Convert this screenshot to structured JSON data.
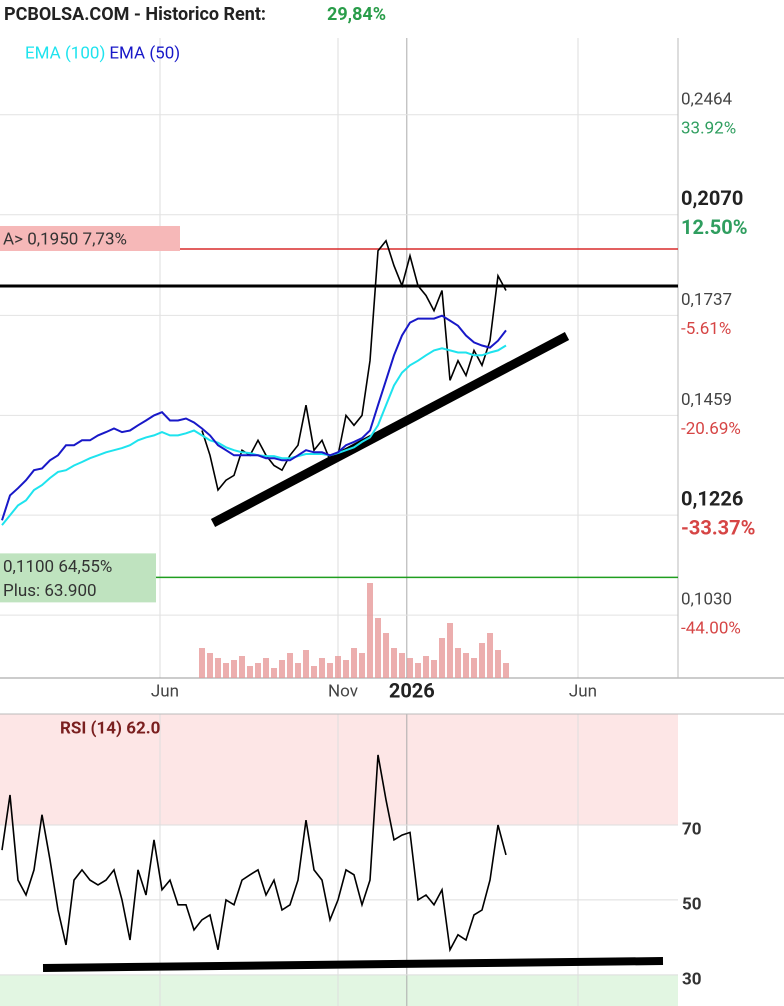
{
  "chart_data": [
    {
      "type": "line",
      "title": "PCBOLSA.COM - Historico  Rent:",
      "title_value": "29,84%",
      "log_scale": true,
      "ylim": [
        0.0923,
        0.2817
      ],
      "yticks": [
        {
          "value": 0.2464,
          "label": "0,2464"
        },
        {
          "value": 0.207,
          "label": "0,2070"
        },
        {
          "value": 0.1737,
          "label": "0,1737"
        },
        {
          "value": 0.1459,
          "label": "0,1459"
        },
        {
          "value": 0.1226,
          "label": "0,1226"
        },
        {
          "value": 0.103,
          "label": "0,1030"
        }
      ],
      "change_labels": [
        "33.92%",
        "12.50%",
        "-5.61%",
        "-20.69%",
        "-33.37%",
        "-44.00%"
      ],
      "xlim": [
        -0.25,
        84.5
      ],
      "xticks": [
        {
          "value": 19.75,
          "label": "Jun"
        },
        {
          "value": 42,
          "label": "Nov"
        },
        {
          "value": 50.6,
          "label": "2026"
        },
        {
          "value": 72,
          "label": "Jun"
        }
      ],
      "levels": [
        {
          "value": 0.195,
          "label": "A> 0,1950  7,73%",
          "color": "#d92b2b",
          "box": "#f6b8b8"
        },
        {
          "value": 0.11,
          "label": "0,1100  64,55%",
          "note": "Plus: 63.900",
          "color": "#1f9e1f",
          "box": "#bfe3bf"
        }
      ],
      "series": [
        {
          "color": "#000000",
          "values": [
            null,
            null,
            null,
            null,
            null,
            null,
            null,
            null,
            null,
            null,
            null,
            null,
            null,
            null,
            null,
            null,
            null,
            null,
            null,
            null,
            null,
            null,
            null,
            null,
            null,
            0.1421,
            0.1361,
            0.1281,
            0.1303,
            0.1314,
            0.1373,
            0.1361,
            0.1397,
            0.1361,
            0.1337,
            0.1326,
            0.1361,
            0.1385,
            0.1485,
            0.1373,
            0.1397,
            0.1349,
            0.1361,
            0.1459,
            0.1434,
            0.1459,
            0.1605,
            0.1944,
            0.1978,
            0.1894,
            0.1829,
            0.1927,
            0.1829,
            0.1798,
            0.1751,
            0.1814,
            0.1551,
            0.1605,
            0.1564,
            0.1634,
            0.1592,
            0.1662,
            0.1861,
            0.1814
          ]
        },
        {
          "name": "EMA (100)",
          "color": "#1ee3ee",
          "values": [
            0.1205,
            0.1226,
            0.1247,
            0.1258,
            0.1281,
            0.1292,
            0.1308,
            0.1322,
            0.1326,
            0.1337,
            0.1345,
            0.1354,
            0.1361,
            0.1368,
            0.1373,
            0.1378,
            0.1385,
            0.1397,
            0.1404,
            0.1409,
            0.1417,
            0.1409,
            0.1409,
            0.1414,
            0.1421,
            0.1409,
            0.1397,
            0.1391,
            0.138,
            0.1373,
            0.1368,
            0.1366,
            0.1361,
            0.1359,
            0.1359,
            0.1354,
            0.1354,
            0.1359,
            0.1364,
            0.1364,
            0.1364,
            0.1361,
            0.1366,
            0.1373,
            0.138,
            0.1393,
            0.1404,
            0.1434,
            0.1485,
            0.1537,
            0.1572,
            0.1592,
            0.1605,
            0.162,
            0.1634,
            0.164,
            0.1634,
            0.1628,
            0.1628,
            0.162,
            0.162,
            0.1628,
            0.1634,
            0.1648
          ]
        },
        {
          "name": "EMA (50)",
          "color": "#1818c8",
          "values": [
            0.1215,
            0.1269,
            0.1285,
            0.1303,
            0.1326,
            0.133,
            0.1349,
            0.1361,
            0.1385,
            0.1385,
            0.1397,
            0.1397,
            0.1409,
            0.1417,
            0.1426,
            0.1417,
            0.1421,
            0.1434,
            0.1446,
            0.1459,
            0.1467,
            0.1446,
            0.1446,
            0.1451,
            0.1441,
            0.1426,
            0.1409,
            0.1385,
            0.1373,
            0.1361,
            0.1361,
            0.1361,
            0.1361,
            0.1354,
            0.1354,
            0.1349,
            0.1349,
            0.1361,
            0.1373,
            0.1368,
            0.1368,
            0.1361,
            0.1368,
            0.1385,
            0.1393,
            0.1402,
            0.1421,
            0.1485,
            0.1551,
            0.162,
            0.1677,
            0.1715,
            0.1727,
            0.1727,
            0.1727,
            0.1736,
            0.1721,
            0.1706,
            0.1677,
            0.1657,
            0.1648,
            0.1642,
            0.1662,
            0.1692
          ]
        }
      ],
      "volume": {
        "color": "#e79a9a",
        "values": [
          null,
          null,
          null,
          null,
          null,
          null,
          null,
          null,
          null,
          null,
          null,
          null,
          null,
          null,
          null,
          null,
          null,
          null,
          null,
          null,
          null,
          null,
          null,
          null,
          null,
          30,
          25,
          20,
          15,
          18,
          22,
          12,
          15,
          20,
          10,
          18,
          25,
          15,
          28,
          12,
          20,
          15,
          22,
          18,
          30,
          25,
          95,
          60,
          45,
          30,
          25,
          20,
          15,
          22,
          18,
          40,
          55,
          30,
          25,
          20,
          35,
          45,
          28,
          15
        ]
      }
    },
    {
      "type": "line",
      "title": "RSI (14) 62.0",
      "ylim": [
        21.7,
        99.6
      ],
      "yticks": [
        70,
        50,
        30
      ],
      "upper_zone": "#fde6e6",
      "lower_zone": "#e2f6e2",
      "series": [
        {
          "color": "#000000",
          "values": [
            63.3,
            78.0,
            55.3,
            51.3,
            58.0,
            72.7,
            60.7,
            47.3,
            38.0,
            55.3,
            58.0,
            55.3,
            54.0,
            55.3,
            58.0,
            50.0,
            39.3,
            58.0,
            51.3,
            66.0,
            52.7,
            55.3,
            48.7,
            48.7,
            42.0,
            44.7,
            46.0,
            36.7,
            50.0,
            48.7,
            55.3,
            56.7,
            58.0,
            51.3,
            55.3,
            47.3,
            48.7,
            55.3,
            71.3,
            58.0,
            55.3,
            44.7,
            50.0,
            58.0,
            56.7,
            48.7,
            55.3,
            88.7,
            76.7,
            66.0,
            67.3,
            68.0,
            50.0,
            51.3,
            48.7,
            52.7,
            36.7,
            40.7,
            39.3,
            46.0,
            47.3,
            55.3,
            70.0,
            62.0
          ]
        }
      ]
    }
  ]
}
